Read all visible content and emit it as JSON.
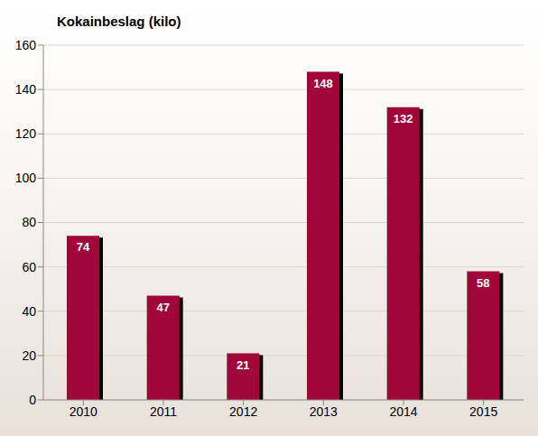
{
  "chart_data": {
    "type": "bar",
    "title": "Kokainbeslag (kilo)",
    "categories": [
      "2010",
      "2011",
      "2012",
      "2013",
      "2014",
      "2015"
    ],
    "values": [
      74,
      47,
      21,
      148,
      132,
      58
    ],
    "color": "#a0063a",
    "ylim": [
      0,
      160
    ],
    "yticks": [
      0,
      20,
      40,
      60,
      80,
      100,
      120,
      140,
      160
    ],
    "grid": true,
    "data_labels": true
  }
}
